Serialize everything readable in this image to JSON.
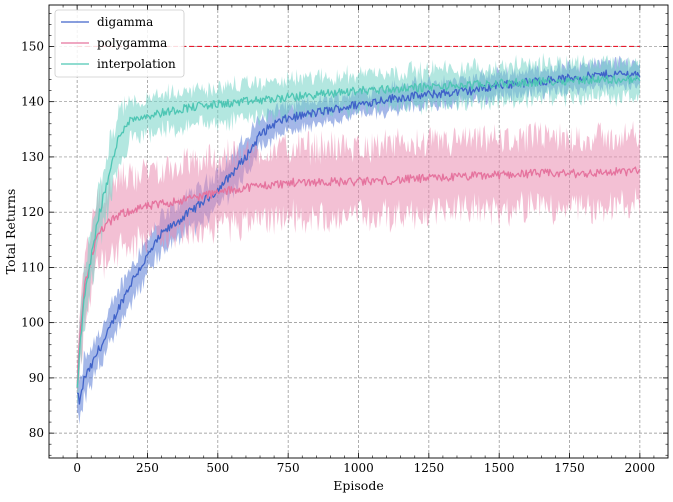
{
  "chart_data": {
    "type": "line",
    "xlabel": "Episode",
    "ylabel": "Total Returns",
    "xlim": [
      -100,
      2100
    ],
    "ylim": [
      75.5,
      157.5
    ],
    "xticks": [
      0,
      250,
      500,
      750,
      1000,
      1250,
      1500,
      1750,
      2000
    ],
    "yticks": [
      80,
      90,
      100,
      110,
      120,
      130,
      140,
      150
    ],
    "grid": true,
    "legend_position": "top-left",
    "reference_line": {
      "y": 150,
      "color": "#e8192c",
      "style": "dashed",
      "x_range": [
        0,
        2000
      ]
    },
    "series": [
      {
        "name": "digamma",
        "color": "#4063c9",
        "shade": "#5a7bd6",
        "x": [
          0,
          10,
          25,
          50,
          75,
          100,
          150,
          200,
          250,
          300,
          350,
          400,
          450,
          500,
          550,
          600,
          650,
          700,
          750,
          800,
          900,
          1000,
          1100,
          1200,
          1300,
          1400,
          1500,
          1600,
          1700,
          1800,
          1900,
          2000
        ],
        "y": [
          87,
          85.5,
          90,
          92,
          95,
          97,
          103,
          108,
          112,
          116,
          118,
          120,
          122,
          124,
          127,
          130,
          134,
          136,
          137,
          137.5,
          138.5,
          139.5,
          140.5,
          141,
          141.5,
          142,
          143,
          143.5,
          144,
          144.5,
          145,
          145
        ],
        "spread": [
          3,
          3,
          3.5,
          3,
          3,
          3,
          3,
          3,
          3,
          3,
          3,
          3,
          3,
          3,
          3,
          3,
          2.8,
          2.5,
          2.3,
          2,
          2,
          2,
          2,
          2,
          2,
          2,
          2,
          2,
          2,
          2,
          2,
          2
        ]
      },
      {
        "name": "polygamma",
        "color": "#e5739e",
        "shade": "#ea8db1",
        "x": [
          0,
          10,
          25,
          50,
          75,
          100,
          150,
          200,
          250,
          300,
          350,
          400,
          500,
          600,
          700,
          800,
          900,
          1000,
          1200,
          1400,
          1600,
          1800,
          2000
        ],
        "y": [
          88,
          98,
          106,
          112,
          116,
          117.5,
          119.5,
          120.5,
          121,
          121.5,
          122,
          122.5,
          123.5,
          124.5,
          125,
          125.5,
          125.5,
          125.5,
          126,
          126.5,
          127,
          127,
          127.5
        ],
        "spread": [
          3,
          6,
          6,
          6,
          6,
          6,
          6,
          6,
          6,
          6,
          6,
          6,
          6,
          6,
          6,
          6,
          6,
          6,
          6,
          6,
          6,
          6,
          6
        ]
      },
      {
        "name": "interpolation",
        "color": "#4ec6b4",
        "shade": "#74d4c6",
        "x": [
          0,
          10,
          25,
          50,
          75,
          100,
          125,
          150,
          175,
          200,
          250,
          300,
          350,
          400,
          500,
          600,
          700,
          800,
          900,
          1000,
          1200,
          1400,
          1600,
          1800,
          2000
        ],
        "y": [
          88,
          96,
          104,
          112,
          119,
          124,
          129,
          134,
          136,
          137,
          137.5,
          138,
          138.5,
          139,
          139.5,
          140,
          140.5,
          141,
          141.5,
          142,
          142.5,
          143,
          143.5,
          144,
          144
        ],
        "spread": [
          3,
          4,
          5,
          5,
          5,
          5,
          5,
          4,
          4,
          3,
          3,
          3,
          3,
          3,
          3,
          3,
          3,
          3,
          3,
          3,
          3,
          3,
          3,
          3,
          3
        ]
      }
    ]
  }
}
